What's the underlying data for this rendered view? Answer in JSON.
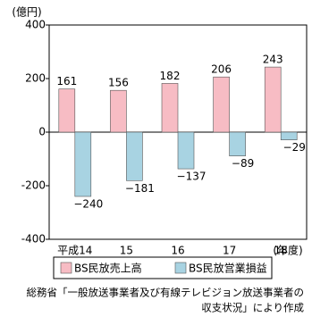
{
  "chart_data": {
    "type": "bar",
    "y_label": "(億円)",
    "x_label": "(年度)",
    "categories": [
      "平成14",
      "15",
      "16",
      "17",
      "18"
    ],
    "series": [
      {
        "name": "BS民放売上高",
        "color": "#f7bcc4",
        "values": [
          161,
          156,
          182,
          206,
          243
        ]
      },
      {
        "name": "BS民放営業損益",
        "color": "#a8d3e2",
        "values": [
          -240,
          -181,
          -137,
          -89,
          -29
        ],
        "value_labels": [
          "−240",
          "−181",
          "−137",
          "−89",
          "−29"
        ]
      }
    ],
    "ylim": [
      -400,
      400
    ],
    "yticks": [
      400,
      200,
      0,
      -200,
      -400
    ],
    "source": [
      "総務省「一般放送事業者及び有線テレビジョン放送事業者の",
      "収支状況」により作成"
    ]
  }
}
